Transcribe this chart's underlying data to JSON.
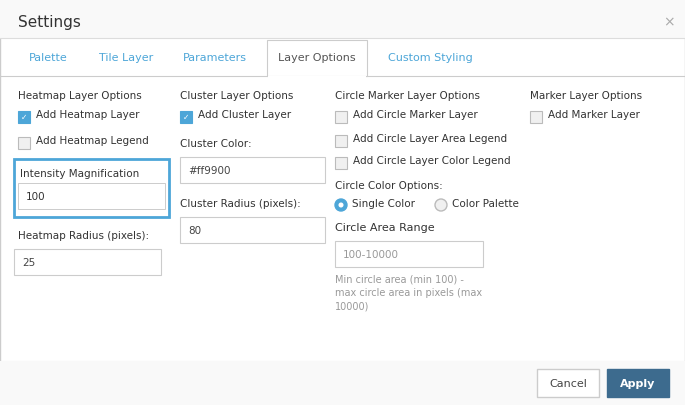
{
  "title": "Settings",
  "close_symbol": "×",
  "tabs": [
    "Palette",
    "Tile Layer",
    "Parameters",
    "Layer Options",
    "Custom Styling"
  ],
  "active_tab": "Layer Options",
  "active_tab_color": "#555555",
  "inactive_tab_color": "#4da6d8",
  "bg_color": "#ffffff",
  "highlight_border": "#4da6d8",
  "col1_header": "Heatmap Layer Options",
  "col2_header": "Cluster Layer Options",
  "col3_header": "Circle Marker Layer Options",
  "col4_header": "Marker Layer Options",
  "cancel_btn": "Cancel",
  "apply_btn": "Apply",
  "apply_btn_color": "#3d6b8e",
  "apply_btn_text_color": "#ffffff",
  "text_color": "#333333",
  "hint_color": "#999999",
  "border_color": "#cccccc",
  "check_color": "#4da6d8",
  "radio_color": "#4da6d8"
}
